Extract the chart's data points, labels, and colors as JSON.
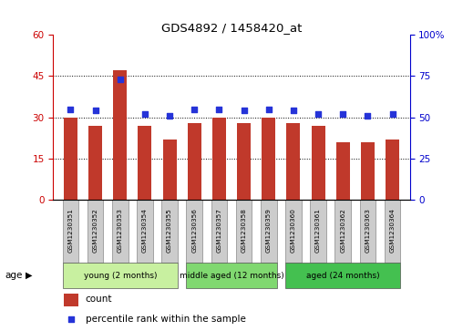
{
  "title": "GDS4892 / 1458420_at",
  "samples": [
    "GSM1230351",
    "GSM1230352",
    "GSM1230353",
    "GSM1230354",
    "GSM1230355",
    "GSM1230356",
    "GSM1230357",
    "GSM1230358",
    "GSM1230359",
    "GSM1230360",
    "GSM1230361",
    "GSM1230362",
    "GSM1230363",
    "GSM1230364"
  ],
  "counts": [
    30,
    27,
    47,
    27,
    22,
    28,
    30,
    28,
    30,
    28,
    27,
    21,
    21,
    22
  ],
  "percentiles": [
    55,
    54,
    73,
    52,
    51,
    55,
    55,
    54,
    55,
    54,
    52,
    52,
    51,
    52
  ],
  "bar_color": "#c0392b",
  "dot_color": "#2533d8",
  "ylim_left": [
    0,
    60
  ],
  "ylim_right": [
    0,
    100
  ],
  "yticks_left": [
    0,
    15,
    30,
    45,
    60
  ],
  "yticks_right": [
    0,
    25,
    50,
    75,
    100
  ],
  "ytick_labels_right": [
    "0",
    "25",
    "50",
    "75",
    "100%"
  ],
  "groups": [
    {
      "label": "young (2 months)",
      "start": 0,
      "end": 4,
      "color": "#c8f0a0"
    },
    {
      "label": "middle aged (12 months)",
      "start": 5,
      "end": 8,
      "color": "#80d870"
    },
    {
      "label": "aged (24 months)",
      "start": 9,
      "end": 13,
      "color": "#44c050"
    }
  ],
  "age_label": "age",
  "legend_count_label": "count",
  "legend_pct_label": "percentile rank within the sample",
  "bar_width": 0.55,
  "tick_color_left": "#cc0000",
  "tick_color_right": "#0000cc",
  "bg_color": "#ffffff",
  "sample_box_color": "#cccccc",
  "grid_linestyle": "dotted",
  "grid_yticks": [
    15,
    30,
    45
  ]
}
